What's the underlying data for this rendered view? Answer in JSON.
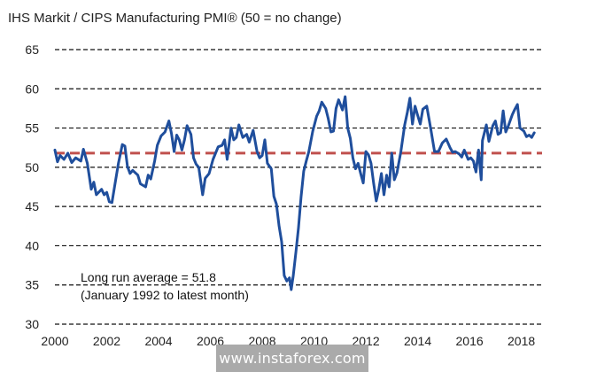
{
  "chart_data": {
    "type": "line",
    "title": "IHS Markit / CIPS Manufacturing PMI® (50 = no change)",
    "xlabel": "",
    "ylabel": "",
    "xlim": [
      2000,
      2018.8
    ],
    "ylim": [
      30,
      65
    ],
    "yticks": [
      30,
      35,
      40,
      45,
      50,
      55,
      60,
      65
    ],
    "xticks": [
      2000,
      2002,
      2004,
      2006,
      2008,
      2010,
      2012,
      2014,
      2016,
      2018
    ],
    "grid": "horizontal dashed",
    "reference_line": {
      "label": "Long run average = 51.8",
      "value": 51.8,
      "color": "#c0504d"
    },
    "annotation": [
      "Long run average = 51.8",
      "(January 1992 to latest month)"
    ],
    "series": [
      {
        "color": "#1f4e9c",
        "points": [
          [
            2000.0,
            52.2
          ],
          [
            2000.1,
            50.7
          ],
          [
            2000.2,
            51.5
          ],
          [
            2000.35,
            51.0
          ],
          [
            2000.5,
            51.8
          ],
          [
            2000.65,
            50.6
          ],
          [
            2000.8,
            51.2
          ],
          [
            2001.0,
            50.8
          ],
          [
            2001.1,
            52.3
          ],
          [
            2001.25,
            50.5
          ],
          [
            2001.4,
            47.2
          ],
          [
            2001.5,
            48.1
          ],
          [
            2001.6,
            46.5
          ],
          [
            2001.8,
            47.2
          ],
          [
            2001.9,
            46.5
          ],
          [
            2002.0,
            46.8
          ],
          [
            2002.1,
            45.6
          ],
          [
            2002.2,
            45.5
          ],
          [
            2002.3,
            47.5
          ],
          [
            2002.45,
            50.5
          ],
          [
            2002.6,
            52.9
          ],
          [
            2002.7,
            52.7
          ],
          [
            2002.8,
            50.1
          ],
          [
            2002.9,
            49.2
          ],
          [
            2003.0,
            49.6
          ],
          [
            2003.2,
            49.0
          ],
          [
            2003.3,
            47.9
          ],
          [
            2003.5,
            47.5
          ],
          [
            2003.6,
            49.0
          ],
          [
            2003.7,
            48.5
          ],
          [
            2003.85,
            50.8
          ],
          [
            2003.95,
            52.8
          ],
          [
            2004.1,
            54.0
          ],
          [
            2004.25,
            54.5
          ],
          [
            2004.4,
            55.9
          ],
          [
            2004.5,
            54.3
          ],
          [
            2004.6,
            52.0
          ],
          [
            2004.7,
            54.1
          ],
          [
            2004.8,
            53.5
          ],
          [
            2004.9,
            52.2
          ],
          [
            2005.0,
            53.5
          ],
          [
            2005.1,
            55.3
          ],
          [
            2005.25,
            54.2
          ],
          [
            2005.35,
            51.2
          ],
          [
            2005.45,
            50.4
          ],
          [
            2005.55,
            50.0
          ],
          [
            2005.7,
            46.5
          ],
          [
            2005.8,
            48.6
          ],
          [
            2005.95,
            49.2
          ],
          [
            2006.1,
            51.0
          ],
          [
            2006.3,
            52.6
          ],
          [
            2006.45,
            52.8
          ],
          [
            2006.55,
            53.5
          ],
          [
            2006.65,
            51.0
          ],
          [
            2006.8,
            55.0
          ],
          [
            2006.9,
            53.5
          ],
          [
            2007.0,
            53.8
          ],
          [
            2007.1,
            55.4
          ],
          [
            2007.25,
            53.8
          ],
          [
            2007.4,
            54.2
          ],
          [
            2007.5,
            53.2
          ],
          [
            2007.65,
            54.7
          ],
          [
            2007.8,
            52.0
          ],
          [
            2007.9,
            51.2
          ],
          [
            2008.0,
            51.5
          ],
          [
            2008.1,
            53.5
          ],
          [
            2008.2,
            50.5
          ],
          [
            2008.35,
            49.8
          ],
          [
            2008.45,
            46.3
          ],
          [
            2008.55,
            45.3
          ],
          [
            2008.65,
            42.5
          ],
          [
            2008.75,
            40.5
          ],
          [
            2008.85,
            36.2
          ],
          [
            2008.95,
            35.5
          ],
          [
            2009.05,
            35.9
          ],
          [
            2009.12,
            34.4
          ],
          [
            2009.2,
            36.2
          ],
          [
            2009.3,
            39.2
          ],
          [
            2009.4,
            42.3
          ],
          [
            2009.5,
            46.2
          ],
          [
            2009.6,
            49.5
          ],
          [
            2009.7,
            50.8
          ],
          [
            2009.8,
            52.0
          ],
          [
            2009.95,
            54.6
          ],
          [
            2010.1,
            56.5
          ],
          [
            2010.2,
            57.2
          ],
          [
            2010.3,
            58.3
          ],
          [
            2010.45,
            57.5
          ],
          [
            2010.55,
            56.2
          ],
          [
            2010.65,
            54.5
          ],
          [
            2010.75,
            54.6
          ],
          [
            2010.85,
            57.5
          ],
          [
            2010.95,
            58.6
          ],
          [
            2011.1,
            57.3
          ],
          [
            2011.2,
            59.0
          ],
          [
            2011.3,
            55.0
          ],
          [
            2011.4,
            53.7
          ],
          [
            2011.5,
            51.2
          ],
          [
            2011.6,
            49.8
          ],
          [
            2011.7,
            50.5
          ],
          [
            2011.8,
            49.2
          ],
          [
            2011.9,
            48.0
          ],
          [
            2012.0,
            52.0
          ],
          [
            2012.1,
            51.6
          ],
          [
            2012.2,
            50.5
          ],
          [
            2012.3,
            48.0
          ],
          [
            2012.4,
            45.7
          ],
          [
            2012.5,
            47.2
          ],
          [
            2012.6,
            49.2
          ],
          [
            2012.7,
            46.5
          ],
          [
            2012.8,
            49.0
          ],
          [
            2012.9,
            47.5
          ],
          [
            2013.0,
            51.8
          ],
          [
            2013.1,
            48.4
          ],
          [
            2013.2,
            49.3
          ],
          [
            2013.35,
            52.0
          ],
          [
            2013.5,
            55.4
          ],
          [
            2013.6,
            57.0
          ],
          [
            2013.7,
            58.8
          ],
          [
            2013.8,
            55.5
          ],
          [
            2013.9,
            57.8
          ],
          [
            2014.0,
            56.6
          ],
          [
            2014.1,
            55.5
          ],
          [
            2014.2,
            57.4
          ],
          [
            2014.35,
            57.8
          ],
          [
            2014.5,
            55.0
          ],
          [
            2014.65,
            52.0
          ],
          [
            2014.8,
            52.0
          ],
          [
            2014.95,
            53.1
          ],
          [
            2015.1,
            53.6
          ],
          [
            2015.25,
            52.5
          ],
          [
            2015.35,
            51.9
          ],
          [
            2015.45,
            52.0
          ],
          [
            2015.6,
            51.7
          ],
          [
            2015.7,
            51.3
          ],
          [
            2015.8,
            52.2
          ],
          [
            2015.95,
            51.0
          ],
          [
            2016.05,
            51.2
          ],
          [
            2016.15,
            50.8
          ],
          [
            2016.25,
            49.4
          ],
          [
            2016.35,
            52.2
          ],
          [
            2016.45,
            48.4
          ],
          [
            2016.5,
            53.4
          ],
          [
            2016.65,
            55.4
          ],
          [
            2016.75,
            53.3
          ],
          [
            2016.9,
            55.3
          ],
          [
            2017.0,
            55.9
          ],
          [
            2017.1,
            54.2
          ],
          [
            2017.2,
            54.4
          ],
          [
            2017.3,
            57.2
          ],
          [
            2017.4,
            54.5
          ],
          [
            2017.5,
            55.3
          ],
          [
            2017.65,
            56.7
          ],
          [
            2017.75,
            57.4
          ],
          [
            2017.85,
            58.0
          ],
          [
            2017.95,
            55.0
          ],
          [
            2018.1,
            54.6
          ],
          [
            2018.2,
            53.9
          ],
          [
            2018.3,
            54.1
          ],
          [
            2018.4,
            53.8
          ],
          [
            2018.5,
            54.4
          ]
        ]
      }
    ]
  },
  "watermark": "www.instaforex.com"
}
